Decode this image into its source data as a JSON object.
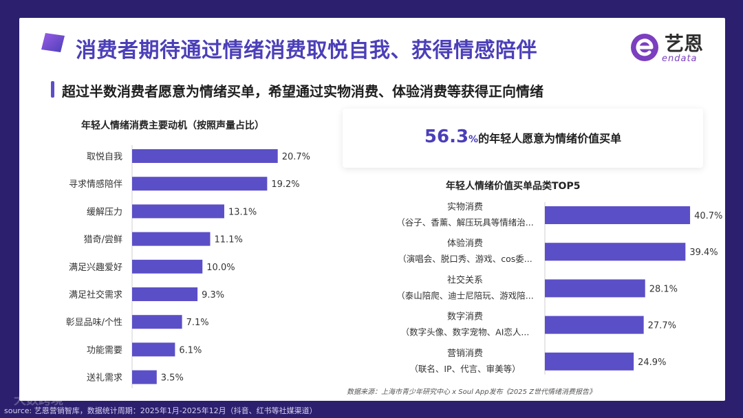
{
  "header": {
    "title": "消费者期待通过情绪消费取悦自我、获得情感陪伴",
    "subtitle": "超过半数消费者愿意为情绪买单，希望通过实物消费、体验消费等获得正向情绪"
  },
  "brand": {
    "name_cn": "艺恩",
    "name_en": "endata",
    "color": "#7b3fbf"
  },
  "highlight": {
    "number": "56.3",
    "percent": "%",
    "text": "的年轻人愿意为情绪价值买单"
  },
  "chart_data": [
    {
      "type": "bar",
      "orientation": "horizontal",
      "title": "年轻人情绪消费主要动机（按照声量占比）",
      "categories": [
        "取悦自我",
        "寻求情感陪伴",
        "缓解压力",
        "猎奇/尝鲜",
        "满足兴趣爱好",
        "满足社交需求",
        "彰显品味/个性",
        "功能需要",
        "送礼需求"
      ],
      "values": [
        20.7,
        19.2,
        13.1,
        11.1,
        10.0,
        9.3,
        7.1,
        6.1,
        3.5
      ],
      "value_labels": [
        "20.7%",
        "19.2%",
        "13.1%",
        "11.1%",
        "10.0%",
        "9.3%",
        "7.1%",
        "6.1%",
        "3.5%"
      ],
      "xlim": [
        0,
        22
      ],
      "unit": "%",
      "color": "#5b4fc7"
    },
    {
      "type": "bar",
      "orientation": "horizontal",
      "title": "年轻人情绪价值买单品类TOP5",
      "categories": [
        "实物消费",
        "体验消费",
        "社交关系",
        "数字消费",
        "营销消费"
      ],
      "sublabels": [
        "（谷子、香薰、解压玩具等情绪治...",
        "（演唱会、脱口秀、游戏、cos委...",
        "（泰山陪爬、迪士尼陪玩、游戏陪...",
        "（数字头像、数字宠物、AI恋人...",
        "（联名、IP、代言、审美等）"
      ],
      "values": [
        40.7,
        39.4,
        28.1,
        27.7,
        24.9
      ],
      "value_labels": [
        "40.7%",
        "39.4%",
        "28.1%",
        "27.7%",
        "24.9%"
      ],
      "xlim": [
        0,
        43
      ],
      "unit": "%",
      "color": "#5b4fc7"
    }
  ],
  "source": "数据来源：上海市青少年研究中心 x Soul App发布《2025 Z世代情绪消费报告》",
  "footer": "source: 艺恩营销智库，数据统计周期：2025年1月-2025年12月（抖音、红书等社媒渠道）",
  "watermark": "大数跨境"
}
